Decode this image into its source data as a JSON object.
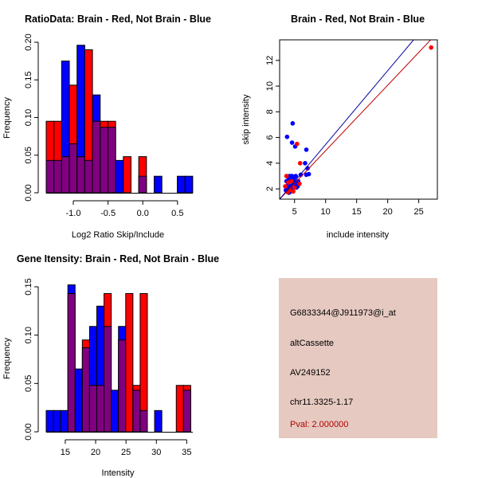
{
  "colors": {
    "brain": "#ff0000",
    "not_brain": "#0000ff",
    "overlap": "#800080",
    "panel_bg": "#e6c9c0",
    "pval": "#b00000"
  },
  "chart_data": [
    {
      "type": "bar",
      "title": "RatioData: Brain - Red, Not Brain - Blue",
      "xlabel": "Log2 Ratio Skip/Include",
      "ylabel": "Frequency",
      "xlim": [
        -1.39,
        0.72
      ],
      "ylim": [
        0,
        0.2
      ],
      "bin_start": -1.39,
      "bin_width": 0.111,
      "xticks": [
        "-1.0",
        "-0.5",
        "0.0",
        "0.5"
      ],
      "xtick_values": [
        -1.0,
        -0.5,
        0.0,
        0.5
      ],
      "yticks": [
        "0.00",
        "0.05",
        "0.10",
        "0.15",
        "0.20"
      ],
      "ytick_values": [
        0,
        0.05,
        0.1,
        0.15,
        0.2
      ],
      "series": [
        {
          "name": "Brain",
          "values": [
            0.095,
            0.095,
            0.048,
            0.143,
            0.048,
            0.19,
            0.095,
            0.095,
            0.095,
            0,
            0.048,
            0,
            0.048,
            0,
            0,
            0,
            0,
            0,
            0
          ]
        },
        {
          "name": "Not Brain",
          "values": [
            0.043,
            0.043,
            0.175,
            0.065,
            0.196,
            0.043,
            0.13,
            0.087,
            0.087,
            0.043,
            0,
            0,
            0.022,
            0,
            0.022,
            0,
            0,
            0.022,
            0.022
          ]
        }
      ]
    },
    {
      "type": "scatter",
      "title": "Brain - Red, Not Brain - Blue",
      "xlabel": "include intensity",
      "ylabel": "skip intensity",
      "xlim": [
        2.6,
        28
      ],
      "ylim": [
        1.2,
        13.6
      ],
      "xticks": [
        "5",
        "10",
        "15",
        "20",
        "25"
      ],
      "xtick_values": [
        5,
        10,
        15,
        20,
        25
      ],
      "yticks": [
        "2",
        "4",
        "6",
        "8",
        "10",
        "12"
      ],
      "ytick_values": [
        2,
        4,
        6,
        8,
        10,
        12
      ],
      "series": [
        {
          "name": "Brain",
          "fit": {
            "slope": 0.51,
            "intercept": -0.13
          },
          "points": [
            [
              27,
              13
            ],
            [
              5.4,
              5.5
            ],
            [
              5.9,
              4.0
            ],
            [
              3.7,
              3.0
            ],
            [
              5.8,
              2.4
            ],
            [
              3.5,
              2.2
            ],
            [
              4.8,
              1.8
            ],
            [
              4.2,
              1.9
            ],
            [
              4.0,
              2.5
            ],
            [
              5.0,
              2.1
            ],
            [
              3.9,
              1.75
            ],
            [
              4.5,
              2.6
            ]
          ]
        },
        {
          "name": "Not Brain",
          "fit": {
            "slope": 0.575,
            "intercept": -0.3
          },
          "points": [
            [
              3.8,
              6.05
            ],
            [
              4.7,
              7.1
            ],
            [
              4.6,
              5.6
            ],
            [
              5.1,
              5.3
            ],
            [
              6.9,
              5.05
            ],
            [
              6.7,
              4.0
            ],
            [
              7.1,
              3.6
            ],
            [
              6.0,
              3.1
            ],
            [
              6.9,
              3.1
            ],
            [
              7.3,
              3.15
            ],
            [
              3.6,
              1.9
            ],
            [
              3.9,
              2.1
            ],
            [
              4.0,
              2.4
            ],
            [
              4.1,
              2.8
            ],
            [
              4.2,
              3.0
            ],
            [
              4.4,
              2.9
            ],
            [
              4.6,
              3.0
            ],
            [
              4.8,
              2.7
            ],
            [
              5.0,
              2.9
            ],
            [
              5.2,
              3.0
            ],
            [
              4.3,
              2.2
            ],
            [
              4.5,
              2.0
            ],
            [
              4.7,
              2.3
            ],
            [
              5.0,
              2.4
            ],
            [
              5.3,
              2.1
            ],
            [
              5.5,
              2.2
            ],
            [
              5.6,
              2.6
            ],
            [
              4.1,
              1.7
            ],
            [
              4.4,
              1.8
            ],
            [
              3.7,
              2.6
            ],
            [
              4.9,
              2.6
            ],
            [
              5.1,
              2.2
            ],
            [
              5.4,
              2.5
            ],
            [
              3.8,
              2.2
            ]
          ]
        }
      ]
    },
    {
      "type": "bar",
      "title": "Gene Itensity: Brain - Red, Not Brain - Blue",
      "xlabel": "Intensity",
      "ylabel": "Frequency",
      "xlim": [
        11.86,
        36.0
      ],
      "ylim": [
        0,
        0.15
      ],
      "bin_start": 11.86,
      "bin_width": 1.19,
      "xticks": [
        "15",
        "20",
        "25",
        "30",
        "35"
      ],
      "xtick_values": [
        15,
        20,
        25,
        30,
        35
      ],
      "yticks": [
        "0.00",
        "0.05",
        "0.10",
        "0.15"
      ],
      "ytick_values": [
        0,
        0.05,
        0.1,
        0.15
      ],
      "series": [
        {
          "name": "Brain",
          "values": [
            0,
            0,
            0,
            0.143,
            0,
            0.095,
            0.048,
            0.048,
            0.143,
            0,
            0.095,
            0.143,
            0.048,
            0.143,
            0,
            0,
            0,
            0,
            0.048,
            0.048
          ]
        },
        {
          "name": "Not Brain",
          "values": [
            0.022,
            0.022,
            0.022,
            0.152,
            0.065,
            0.087,
            0.109,
            0.13,
            0.109,
            0.043,
            0.109,
            0,
            0.043,
            0.022,
            0,
            0.022,
            0,
            0,
            0,
            0.043
          ]
        }
      ]
    }
  ],
  "info": {
    "probe": "G6833344@J911973@i_at",
    "event_type": "altCassette",
    "accession": "AV249152",
    "location": "chr11.3325-1.17",
    "pval": "Pval: 2.000000"
  }
}
